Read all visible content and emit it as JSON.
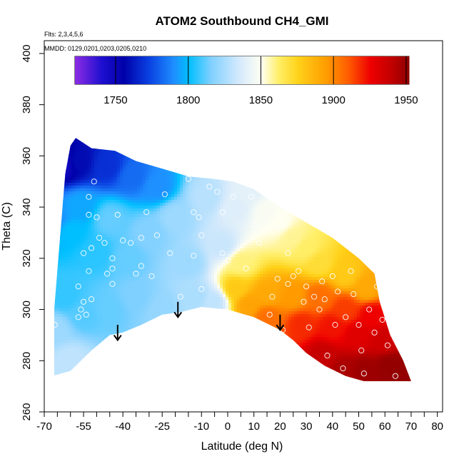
{
  "chart_data": {
    "type": "heatmap",
    "title": "ATOM2 Southbound CH4_GMI",
    "annotations": {
      "flights": "Flts: 2,3,4,5,6",
      "dates": "MMDD: 0129,0201,0203,0205,0210"
    },
    "xlabel": "Latitude (deg N)",
    "ylabel": "Theta (C)",
    "xlim": [
      -70,
      82
    ],
    "ylim": [
      260,
      405
    ],
    "x_ticks_major": [
      -70,
      -55,
      -40,
      -25,
      -10,
      0,
      10,
      20,
      30,
      40,
      50,
      60,
      70,
      80
    ],
    "x_tick_labels": [
      "-70",
      "-55",
      "-40",
      "-25",
      "-10",
      "0",
      "10",
      "20",
      "30",
      "40",
      "50",
      "60",
      "70",
      "80"
    ],
    "x_ticks_minor": [
      -65,
      -60,
      -50,
      -45,
      -35,
      -30,
      -20,
      -15,
      -5,
      5,
      15,
      25,
      35,
      45,
      55,
      65,
      75
    ],
    "y_ticks": [
      260,
      280,
      300,
      320,
      340,
      360,
      380,
      400
    ],
    "y_tick_labels": [
      "260",
      "280",
      "300",
      "320",
      "340",
      "360",
      "380",
      "400"
    ],
    "colorbar": {
      "range": [
        1722,
        1952
      ],
      "ticks": [
        1750,
        1800,
        1850,
        1900,
        1950
      ],
      "tick_labels": [
        "1750",
        "1800",
        "1850",
        "1900",
        "1950"
      ],
      "stops": [
        {
          "v": 1722,
          "c": "#8a2be2"
        },
        {
          "v": 1740,
          "c": "#1e0fd0"
        },
        {
          "v": 1755,
          "c": "#0000a8"
        },
        {
          "v": 1772,
          "c": "#0a3ee0"
        },
        {
          "v": 1790,
          "c": "#1e90ff"
        },
        {
          "v": 1800,
          "c": "#00bfff"
        },
        {
          "v": 1815,
          "c": "#7fd0ff"
        },
        {
          "v": 1835,
          "c": "#d6eafc"
        },
        {
          "v": 1850,
          "c": "#fffff2"
        },
        {
          "v": 1862,
          "c": "#ffee66"
        },
        {
          "v": 1875,
          "c": "#ffd21a"
        },
        {
          "v": 1895,
          "c": "#ff9b00"
        },
        {
          "v": 1910,
          "c": "#ff5a00"
        },
        {
          "v": 1925,
          "c": "#ee0000"
        },
        {
          "v": 1940,
          "c": "#c00000"
        },
        {
          "v": 1952,
          "c": "#8b0000"
        }
      ]
    },
    "field_anchors": [
      {
        "lat": -63,
        "theta": 357,
        "v": 1745
      },
      {
        "lat": -57,
        "theta": 358,
        "v": 1758
      },
      {
        "lat": -46,
        "theta": 356,
        "v": 1768
      },
      {
        "lat": -36,
        "theta": 352,
        "v": 1782
      },
      {
        "lat": -27,
        "theta": 348,
        "v": 1790
      },
      {
        "lat": -66,
        "theta": 335,
        "v": 1790
      },
      {
        "lat": -60,
        "theta": 330,
        "v": 1800
      },
      {
        "lat": -56,
        "theta": 340,
        "v": 1795
      },
      {
        "lat": -50,
        "theta": 322,
        "v": 1805
      },
      {
        "lat": -45,
        "theta": 335,
        "v": 1812
      },
      {
        "lat": -38,
        "theta": 320,
        "v": 1812
      },
      {
        "lat": -30,
        "theta": 330,
        "v": 1816
      },
      {
        "lat": -20,
        "theta": 336,
        "v": 1822
      },
      {
        "lat": -15,
        "theta": 318,
        "v": 1822
      },
      {
        "lat": -8,
        "theta": 344,
        "v": 1828
      },
      {
        "lat": -62,
        "theta": 305,
        "v": 1806
      },
      {
        "lat": -66,
        "theta": 292,
        "v": 1822
      },
      {
        "lat": -60,
        "theta": 280,
        "v": 1830
      },
      {
        "lat": -55,
        "theta": 298,
        "v": 1810
      },
      {
        "lat": -45,
        "theta": 300,
        "v": 1812
      },
      {
        "lat": -35,
        "theta": 305,
        "v": 1815
      },
      {
        "lat": -25,
        "theta": 300,
        "v": 1820
      },
      {
        "lat": -12,
        "theta": 305,
        "v": 1825
      },
      {
        "lat": -5,
        "theta": 303,
        "v": 1830
      },
      {
        "lat": -2,
        "theta": 325,
        "v": 1832
      },
      {
        "lat": 3,
        "theta": 340,
        "v": 1838
      },
      {
        "lat": 5,
        "theta": 318,
        "v": 1860
      },
      {
        "lat": 8,
        "theta": 346,
        "v": 1840
      },
      {
        "lat": 15,
        "theta": 338,
        "v": 1848
      },
      {
        "lat": 20,
        "theta": 334,
        "v": 1850
      },
      {
        "lat": 25,
        "theta": 328,
        "v": 1858
      },
      {
        "lat": 30,
        "theta": 324,
        "v": 1862
      },
      {
        "lat": 35,
        "theta": 318,
        "v": 1870
      },
      {
        "lat": 45,
        "theta": 314,
        "v": 1878
      },
      {
        "lat": 53,
        "theta": 308,
        "v": 1890
      },
      {
        "lat": 3,
        "theta": 308,
        "v": 1878
      },
      {
        "lat": 8,
        "theta": 302,
        "v": 1892
      },
      {
        "lat": 15,
        "theta": 306,
        "v": 1890
      },
      {
        "lat": 15,
        "theta": 297,
        "v": 1905
      },
      {
        "lat": 25,
        "theta": 305,
        "v": 1895
      },
      {
        "lat": 28,
        "theta": 294,
        "v": 1918
      },
      {
        "lat": 35,
        "theta": 305,
        "v": 1905
      },
      {
        "lat": 40,
        "theta": 293,
        "v": 1922
      },
      {
        "lat": 45,
        "theta": 300,
        "v": 1915
      },
      {
        "lat": 50,
        "theta": 290,
        "v": 1930
      },
      {
        "lat": 55,
        "theta": 298,
        "v": 1925
      },
      {
        "lat": 60,
        "theta": 288,
        "v": 1935
      },
      {
        "lat": 36,
        "theta": 282,
        "v": 1938
      },
      {
        "lat": 44,
        "theta": 276,
        "v": 1945
      },
      {
        "lat": 52,
        "theta": 276,
        "v": 1948
      },
      {
        "lat": 62,
        "theta": 278,
        "v": 1950
      },
      {
        "lat": 68,
        "theta": 274,
        "v": 1950
      }
    ],
    "top_boundary": [
      {
        "lat": -67,
        "theta": 290
      },
      {
        "lat": -62,
        "theta": 353
      },
      {
        "lat": -60,
        "theta": 364
      },
      {
        "lat": -58,
        "theta": 367
      },
      {
        "lat": -55,
        "theta": 365
      },
      {
        "lat": -52,
        "theta": 363
      },
      {
        "lat": -43,
        "theta": 362
      },
      {
        "lat": -35,
        "theta": 358
      },
      {
        "lat": -25,
        "theta": 355
      },
      {
        "lat": -15,
        "theta": 352
      },
      {
        "lat": -5,
        "theta": 351
      },
      {
        "lat": 2,
        "theta": 350
      },
      {
        "lat": 10,
        "theta": 347
      },
      {
        "lat": 20,
        "theta": 340
      },
      {
        "lat": 30,
        "theta": 334
      },
      {
        "lat": 40,
        "theta": 328
      },
      {
        "lat": 50,
        "theta": 320
      },
      {
        "lat": 56,
        "theta": 314
      },
      {
        "lat": 58,
        "theta": 303
      },
      {
        "lat": 62,
        "theta": 290
      },
      {
        "lat": 67,
        "theta": 280
      },
      {
        "lat": 70,
        "theta": 272
      }
    ],
    "bottom_boundary": [
      {
        "lat": -67,
        "theta": 274
      },
      {
        "lat": -60,
        "theta": 276
      },
      {
        "lat": -52,
        "theta": 284
      },
      {
        "lat": -45,
        "theta": 290
      },
      {
        "lat": -40,
        "theta": 291
      },
      {
        "lat": -33,
        "theta": 294
      },
      {
        "lat": -25,
        "theta": 298
      },
      {
        "lat": -18,
        "theta": 299
      },
      {
        "lat": -10,
        "theta": 301
      },
      {
        "lat": 0,
        "theta": 300
      },
      {
        "lat": 10,
        "theta": 297
      },
      {
        "lat": 20,
        "theta": 292
      },
      {
        "lat": 25,
        "theta": 288
      },
      {
        "lat": 30,
        "theta": 283
      },
      {
        "lat": 37,
        "theta": 278
      },
      {
        "lat": 45,
        "theta": 274
      },
      {
        "lat": 52,
        "theta": 272
      },
      {
        "lat": 70,
        "theta": 272
      }
    ],
    "sample_points": [
      [
        -68,
        289
      ],
      [
        -66,
        294
      ],
      [
        -57,
        297
      ],
      [
        -56,
        300
      ],
      [
        -54,
        298
      ],
      [
        -55,
        303
      ],
      [
        -52,
        304
      ],
      [
        -57,
        309
      ],
      [
        -53,
        315
      ],
      [
        -55,
        322
      ],
      [
        -52,
        324
      ],
      [
        -49,
        328
      ],
      [
        -53,
        337
      ],
      [
        -50,
        336
      ],
      [
        -53,
        344
      ],
      [
        -51,
        350
      ],
      [
        -47,
        326
      ],
      [
        -46,
        314
      ],
      [
        -44,
        320
      ],
      [
        -44,
        316
      ],
      [
        -44,
        310
      ],
      [
        -42,
        337
      ],
      [
        -40,
        327
      ],
      [
        -37,
        326
      ],
      [
        -35,
        314
      ],
      [
        -33,
        317
      ],
      [
        -33,
        328
      ],
      [
        -31,
        338
      ],
      [
        -29,
        313
      ],
      [
        -27,
        329
      ],
      [
        -24,
        345
      ],
      [
        -22,
        322
      ],
      [
        -19,
        295
      ],
      [
        -18,
        305
      ],
      [
        -15,
        351
      ],
      [
        -13,
        338
      ],
      [
        -13,
        321
      ],
      [
        -11,
        336
      ],
      [
        -10,
        329
      ],
      [
        -10,
        308
      ],
      [
        -7,
        348
      ],
      [
        -4,
        346
      ],
      [
        -2,
        338
      ],
      [
        -2,
        322
      ],
      [
        0,
        319
      ],
      [
        2,
        344
      ],
      [
        4,
        352
      ],
      [
        7,
        316
      ],
      [
        9,
        344
      ],
      [
        10,
        333
      ],
      [
        12,
        326
      ],
      [
        16,
        298
      ],
      [
        17,
        305
      ],
      [
        19,
        312
      ],
      [
        21,
        292
      ],
      [
        23,
        310
      ],
      [
        23,
        322
      ],
      [
        25,
        313
      ],
      [
        27,
        315
      ],
      [
        29,
        303
      ],
      [
        30,
        309
      ],
      [
        31,
        293
      ],
      [
        33,
        305
      ],
      [
        35,
        300
      ],
      [
        36,
        311
      ],
      [
        37,
        304
      ],
      [
        38,
        282
      ],
      [
        40,
        313
      ],
      [
        41,
        294
      ],
      [
        42,
        307
      ],
      [
        44,
        277
      ],
      [
        45,
        297
      ],
      [
        47,
        315
      ],
      [
        48,
        306
      ],
      [
        50,
        294
      ],
      [
        51,
        284
      ],
      [
        52,
        275
      ],
      [
        54,
        300
      ],
      [
        56,
        291
      ],
      [
        57,
        309
      ],
      [
        59,
        296
      ],
      [
        61,
        286
      ],
      [
        64,
        274
      ]
    ],
    "arrows": [
      {
        "lat": -42,
        "theta": 294
      },
      {
        "lat": -19,
        "theta": 303
      },
      {
        "lat": 20,
        "theta": 298
      }
    ]
  }
}
